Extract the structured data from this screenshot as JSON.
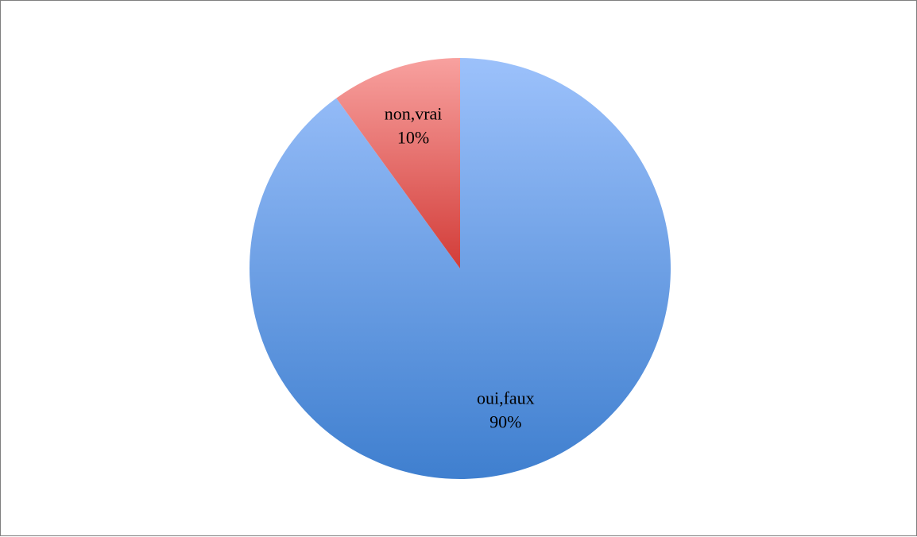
{
  "chart_data": {
    "type": "pie",
    "categories": [
      "oui,faux",
      "non,vrai"
    ],
    "values": [
      90,
      10
    ],
    "labels": [
      "90%",
      "10%"
    ],
    "colors": {
      "oui,faux": {
        "light": "#9cc1fb",
        "dark": "#3f7fcf"
      },
      "non,vrai": {
        "light": "#f8a19f",
        "dark": "#d23c38"
      }
    },
    "start_angle_deg": 0,
    "direction": "clockwise",
    "legend": "none"
  }
}
